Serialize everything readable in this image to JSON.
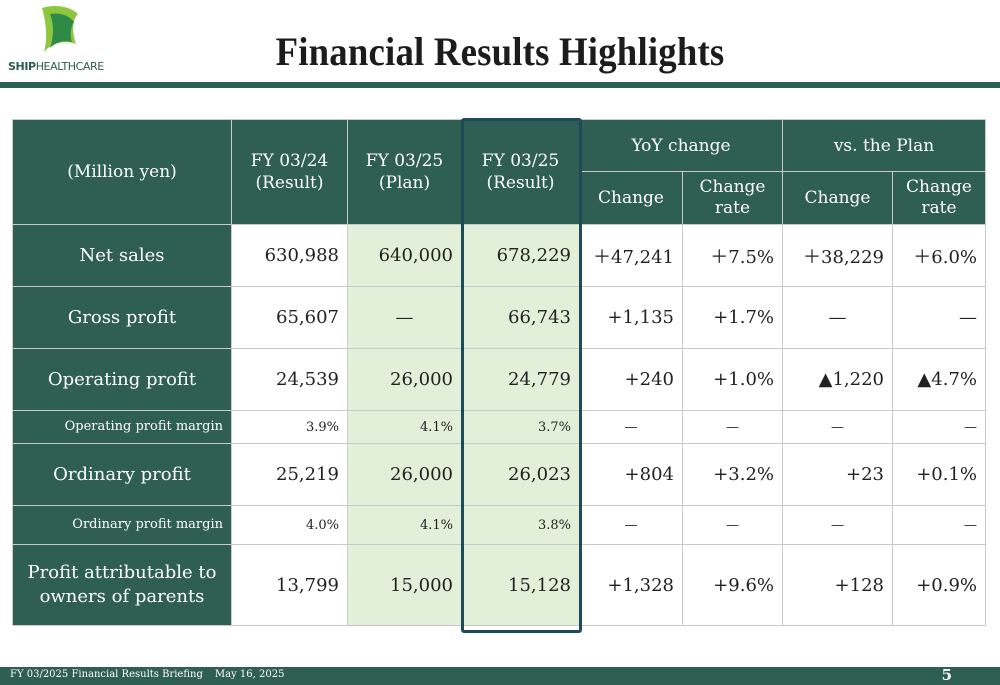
{
  "logo": {
    "brand_bold": "SHIP",
    "brand_light": "HEALTHCARE",
    "colors": {
      "green_light": "#8dc63f",
      "green_dark": "#2f8a47"
    }
  },
  "title": "Financial Results Highlights",
  "table": {
    "headers": {
      "unit": "(Million yen)",
      "fy24_result": "FY 03/24\n(Result)",
      "fy25_plan": "FY 03/25\n(Plan)",
      "fy25_result": "FY 03/25\n(Result)",
      "yoy": "YoY  change",
      "vs_plan": "vs. the Plan",
      "change": "Change",
      "change_rate": "Change\nrate"
    },
    "rows": [
      {
        "label": "Net sales",
        "fy24": "630,988",
        "plan": "640,000",
        "result": "678,229",
        "yoy_change": "＋47,241",
        "yoy_rate": "＋7.5%",
        "plan_change": "＋38,229",
        "plan_rate": "＋6.0%"
      },
      {
        "label": "Gross profit",
        "fy24": "65,607",
        "plan": "—",
        "result": "66,743",
        "yoy_change": "+1,135",
        "yoy_rate": "+1.7%",
        "plan_change": "—",
        "plan_rate": "—"
      },
      {
        "label": "Operating profit",
        "fy24": "24,539",
        "plan": "26,000",
        "result": "24,779",
        "yoy_change": "+240",
        "yoy_rate": "+1.0%",
        "plan_change": "▲1,220",
        "plan_rate": "▲4.7%"
      },
      {
        "label": "Operating profit margin",
        "fy24": "3.9%",
        "plan": "4.1%",
        "result": "3.7%",
        "yoy_change": "—",
        "yoy_rate": "—",
        "plan_change": "—",
        "plan_rate": "—"
      },
      {
        "label": "Ordinary profit",
        "fy24": "25,219",
        "plan": "26,000",
        "result": "26,023",
        "yoy_change": "+804",
        "yoy_rate": "+3.2%",
        "plan_change": "+23",
        "plan_rate": "+0.1%"
      },
      {
        "label": "Ordinary profit margin",
        "fy24": "4.0%",
        "plan": "4.1%",
        "result": "3.8%",
        "yoy_change": "—",
        "yoy_rate": "—",
        "plan_change": "—",
        "plan_rate": "—"
      },
      {
        "label": "Profit attributable to\nowners of parents",
        "fy24": "13,799",
        "plan": "15,000",
        "result": "15,128",
        "yoy_change": "+1,328",
        "yoy_rate": "+9.6%",
        "plan_change": "+128",
        "plan_rate": "+0.9%"
      }
    ]
  },
  "footer": {
    "briefing": "FY  03/2025 Financial Results Briefing",
    "date": "May 16, 2025",
    "page": "5"
  },
  "colors": {
    "header_green": "#2f5f52",
    "highlight_fill": "#e2f0d9",
    "highlight_border": "#1e4a5a"
  }
}
